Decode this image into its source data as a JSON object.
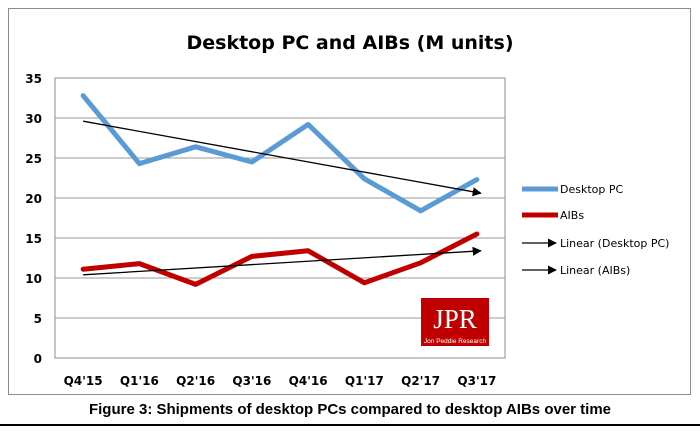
{
  "chart_data": {
    "type": "line",
    "title": "Desktop PC and AIBs (M units)",
    "categories": [
      "Q4'15",
      "Q1'16",
      "Q2'16",
      "Q3'16",
      "Q4'16",
      "Q1'17",
      "Q2'17",
      "Q3'17"
    ],
    "series": [
      {
        "name": "Desktop PC",
        "values": [
          32.8,
          24.3,
          26.4,
          24.5,
          29.2,
          22.4,
          18.4,
          22.3
        ],
        "color": "#5b9bd5"
      },
      {
        "name": "AIBs",
        "values": [
          11.1,
          11.8,
          9.2,
          12.7,
          13.4,
          9.4,
          11.9,
          15.5
        ],
        "color": "#c00000"
      }
    ],
    "trendlines": [
      {
        "name": "Linear (Desktop PC)",
        "start": 29.6,
        "end": 20.6,
        "color": "#000000"
      },
      {
        "name": "Linear (AIBs)",
        "start": 10.4,
        "end": 13.4,
        "color": "#000000"
      }
    ],
    "yticks": [
      "0",
      "5",
      "10",
      "15",
      "20",
      "25",
      "30",
      "35"
    ],
    "ylim": [
      0,
      35
    ],
    "grid": "horizontal",
    "legend_position": "right",
    "logo": {
      "main": "JPR",
      "sub": "Jon Peddie Research",
      "color": "#c00000"
    }
  },
  "caption": "Figure 3: Shipments of desktop PCs compared to desktop AIBs over time"
}
